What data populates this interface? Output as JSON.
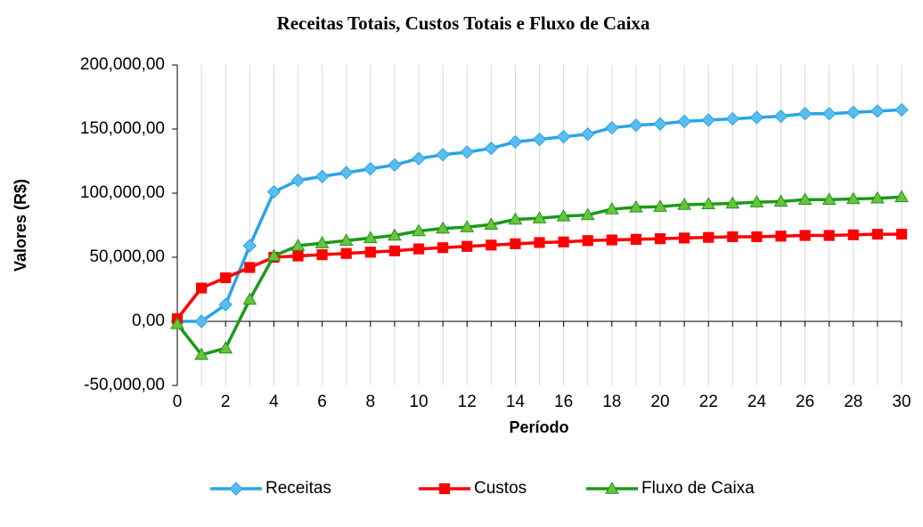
{
  "chart_data": {
    "type": "line",
    "title": "Receitas Totais, Custos Totais e Fluxo de Caixa",
    "xlabel": "Período",
    "ylabel": "Valores (R$)",
    "x": [
      0,
      1,
      2,
      3,
      4,
      5,
      6,
      7,
      8,
      9,
      10,
      11,
      12,
      13,
      14,
      15,
      16,
      17,
      18,
      19,
      20,
      21,
      22,
      23,
      24,
      25,
      26,
      27,
      28,
      29,
      30
    ],
    "series": [
      {
        "name": "Receitas",
        "color": "#2aa5e6",
        "marker_fill": "#5bbcee",
        "marker": "diamond",
        "values": [
          0,
          0,
          13000,
          59000,
          101000,
          110000,
          113000,
          116000,
          119000,
          122000,
          127000,
          130000,
          132000,
          135000,
          140000,
          142000,
          144000,
          146000,
          151000,
          153000,
          154000,
          156000,
          157000,
          158000,
          159000,
          160000,
          162000,
          162000,
          163000,
          164000,
          165000
        ]
      },
      {
        "name": "Custos",
        "color": "#ff0000",
        "marker_fill": "#ff0000",
        "marker": "square",
        "values": [
          2000,
          26000,
          34000,
          42000,
          50000,
          51000,
          52000,
          53000,
          54000,
          55000,
          56500,
          57500,
          58500,
          59500,
          60500,
          61500,
          62000,
          63000,
          63500,
          64000,
          64500,
          65000,
          65500,
          66000,
          66000,
          66500,
          67000,
          67000,
          67500,
          68000,
          68000
        ]
      },
      {
        "name": "Fluxo de Caixa",
        "color": "#1a9a1a",
        "marker_fill": "#6cc23a",
        "marker": "triangle",
        "values": [
          -2000,
          -26000,
          -21000,
          17000,
          51000,
          59000,
          61000,
          63000,
          65000,
          67000,
          70500,
          72500,
          73500,
          75500,
          79500,
          80500,
          82000,
          83000,
          87500,
          89000,
          89500,
          91000,
          91500,
          92000,
          93000,
          93500,
          95000,
          95000,
          95500,
          96000,
          97000
        ]
      }
    ],
    "xlim": [
      0,
      30
    ],
    "xticks": [
      0,
      2,
      4,
      6,
      8,
      10,
      12,
      14,
      16,
      18,
      20,
      22,
      24,
      26,
      28,
      30
    ],
    "xminor": [
      1,
      3,
      5,
      7,
      9,
      11,
      13,
      15,
      17,
      19,
      21,
      23,
      25,
      27,
      29
    ],
    "ylim": [
      -50000,
      200000
    ],
    "yticks": [
      {
        "value": -50000,
        "label": "-50,000,00"
      },
      {
        "value": 0,
        "label": "0,00"
      },
      {
        "value": 50000,
        "label": "50,000,00"
      },
      {
        "value": 100000,
        "label": "100,000,00"
      },
      {
        "value": 150000,
        "label": "150,000,00"
      },
      {
        "value": 200000,
        "label": "200,000,00"
      }
    ],
    "negative_tick_color": "#ff0000",
    "grid": "x",
    "legend": "bottom"
  }
}
